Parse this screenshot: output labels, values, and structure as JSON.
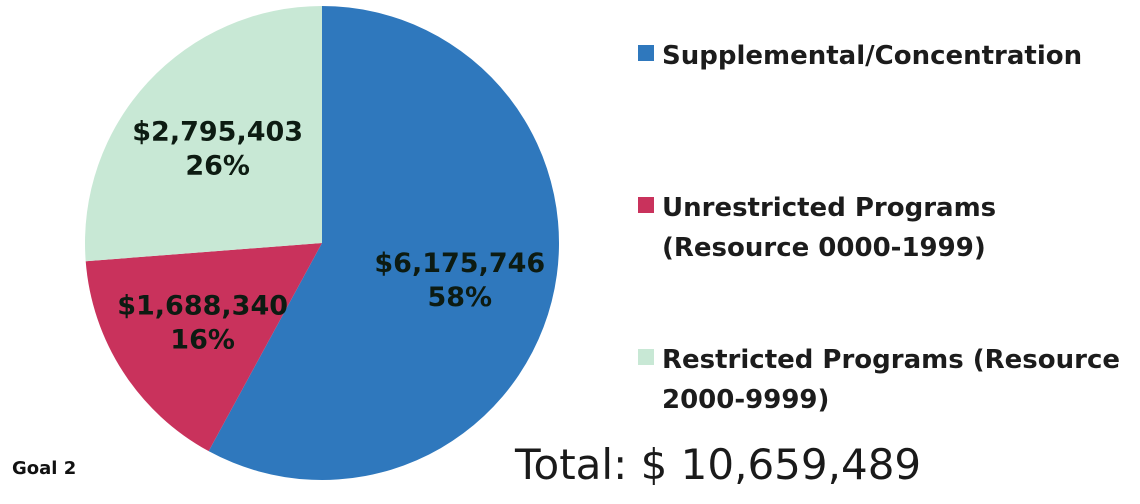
{
  "chart_data": {
    "type": "pie",
    "categories": [
      "Supplemental/Concentration",
      "Unrestricted Programs (Resource 0000-1999)",
      "Restricted Programs (Resource 2000-9999)"
    ],
    "values": [
      6175746,
      1688340,
      2795403
    ],
    "value_labels": [
      "$6,175,746",
      "$1,688,340",
      "$2,795,403"
    ],
    "percent_labels": [
      "58%",
      "16%",
      "26%"
    ],
    "colors": [
      "#2f78bd",
      "#c9325c",
      "#c8e8d5"
    ],
    "legend": "right",
    "annotations": [
      "Total: $ 10,659,489",
      "Goal 2"
    ]
  }
}
